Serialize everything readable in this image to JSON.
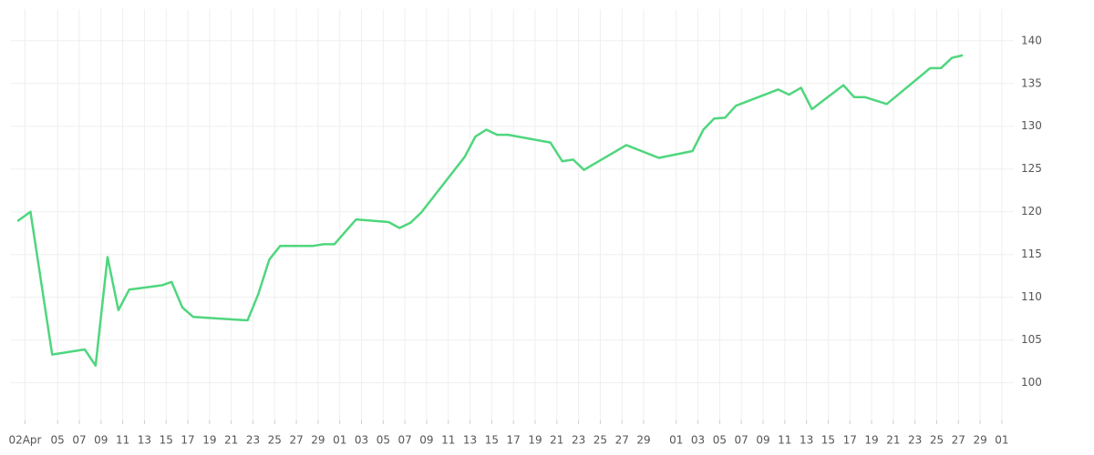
{
  "chart_data": {
    "type": "line",
    "color": "#4fd67e",
    "grid": true,
    "x": [
      -0.7,
      0.5,
      2.5,
      5.5,
      6.5,
      7.6,
      8.6,
      9.6,
      12.6,
      13.5,
      14.5,
      15.5,
      20.5,
      21.5,
      22.5,
      23.5,
      26.5,
      27.5,
      28.5,
      30.5,
      33.5,
      34.5,
      35.5,
      36.5,
      40.5,
      41.5,
      42.5,
      43.5,
      44.5,
      48.4,
      49.5,
      50.5,
      51.5,
      55.4,
      58.4,
      61.5,
      62.5,
      63.5,
      64.5,
      65.5,
      69.4,
      70.4,
      71.5,
      72.5,
      75.4,
      76.4,
      77.4,
      79.4,
      83.4,
      84.4,
      85.4,
      86.4
    ],
    "values": [
      118.9,
      120.0,
      103.3,
      103.9,
      102.0,
      114.7,
      108.5,
      110.9,
      111.4,
      111.8,
      108.8,
      107.7,
      107.3,
      110.4,
      114.4,
      116.0,
      116.0,
      116.2,
      116.2,
      119.1,
      118.8,
      118.1,
      118.7,
      119.9,
      126.4,
      128.8,
      129.6,
      129.0,
      129.0,
      128.1,
      125.9,
      126.1,
      124.9,
      127.8,
      126.3,
      127.1,
      129.6,
      130.9,
      131.0,
      132.4,
      134.3,
      133.7,
      134.5,
      132.0,
      134.8,
      133.4,
      133.4,
      132.6,
      136.8,
      136.8,
      138.0,
      138.3
    ],
    "xlim": [
      -1.3,
      91.1
    ],
    "xticks": [
      {
        "value": 0,
        "label": "02Apr"
      },
      {
        "value": 3,
        "label": "05"
      },
      {
        "value": 5,
        "label": "07"
      },
      {
        "value": 7,
        "label": "09"
      },
      {
        "value": 9,
        "label": "11"
      },
      {
        "value": 11,
        "label": "13"
      },
      {
        "value": 13,
        "label": "15"
      },
      {
        "value": 15,
        "label": "17"
      },
      {
        "value": 17,
        "label": "19"
      },
      {
        "value": 19,
        "label": "21"
      },
      {
        "value": 21,
        "label": "23"
      },
      {
        "value": 23,
        "label": "25"
      },
      {
        "value": 25,
        "label": "27"
      },
      {
        "value": 27,
        "label": "29"
      },
      {
        "value": 29,
        "label": "01"
      },
      {
        "value": 31,
        "label": "03"
      },
      {
        "value": 33,
        "label": "05"
      },
      {
        "value": 35,
        "label": "07"
      },
      {
        "value": 37,
        "label": "09"
      },
      {
        "value": 39,
        "label": "11"
      },
      {
        "value": 41,
        "label": "13"
      },
      {
        "value": 43,
        "label": "15"
      },
      {
        "value": 45,
        "label": "17"
      },
      {
        "value": 47,
        "label": "19"
      },
      {
        "value": 49,
        "label": "21"
      },
      {
        "value": 51,
        "label": "23"
      },
      {
        "value": 53,
        "label": "25"
      },
      {
        "value": 55,
        "label": "27"
      },
      {
        "value": 57,
        "label": "29"
      },
      {
        "value": 60,
        "label": "01"
      },
      {
        "value": 62,
        "label": "03"
      },
      {
        "value": 64,
        "label": "05"
      },
      {
        "value": 66,
        "label": "07"
      },
      {
        "value": 68,
        "label": "09"
      },
      {
        "value": 70,
        "label": "11"
      },
      {
        "value": 72,
        "label": "13"
      },
      {
        "value": 74,
        "label": "15"
      },
      {
        "value": 76,
        "label": "17"
      },
      {
        "value": 78,
        "label": "19"
      },
      {
        "value": 80,
        "label": "21"
      },
      {
        "value": 82,
        "label": "23"
      },
      {
        "value": 84,
        "label": "25"
      },
      {
        "value": 86,
        "label": "27"
      },
      {
        "value": 88,
        "label": "29"
      },
      {
        "value": 90,
        "label": "01"
      }
    ],
    "ylim": [
      95.6,
      143.7
    ],
    "yticks": [
      100,
      105,
      110,
      115,
      120,
      125,
      130,
      135,
      140
    ]
  }
}
